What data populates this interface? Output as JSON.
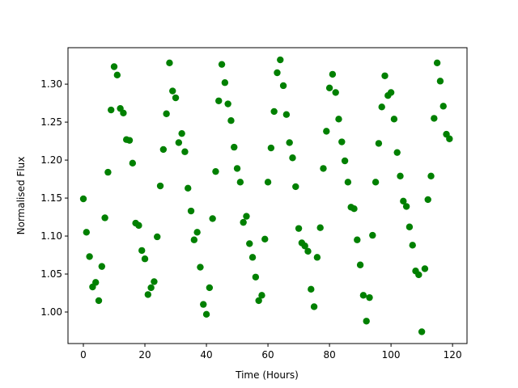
{
  "chart_data": {
    "type": "scatter",
    "xlabel": "Time (Hours)",
    "ylabel": "Normalised Flux",
    "color": "#008000",
    "x": [
      0,
      1,
      2,
      3,
      4,
      5,
      6,
      7,
      8,
      9,
      10,
      11,
      12,
      13,
      14,
      15,
      16,
      17,
      18,
      19,
      20,
      21,
      22,
      23,
      24,
      25,
      26,
      27,
      28,
      29,
      30,
      31,
      32,
      33,
      34,
      35,
      36,
      37,
      38,
      39,
      40,
      41,
      42,
      43,
      44,
      45,
      46,
      47,
      48,
      49,
      50,
      51,
      52,
      53,
      54,
      55,
      56,
      57,
      58,
      59,
      60,
      61,
      62,
      63,
      64,
      65,
      66,
      67,
      68,
      69,
      70,
      71,
      72,
      73,
      74,
      75,
      76,
      77,
      78,
      79,
      80,
      81,
      82,
      83,
      84,
      85,
      86,
      87,
      88,
      89,
      90,
      91,
      92,
      93,
      94,
      95,
      96,
      97,
      98,
      99,
      100,
      101,
      102,
      103,
      104,
      105,
      106,
      107,
      108,
      109,
      110,
      111,
      112,
      113,
      114,
      115,
      116,
      117,
      118,
      119
    ],
    "values": [
      1.149,
      1.105,
      1.073,
      1.033,
      1.039,
      1.015,
      1.06,
      1.124,
      1.184,
      1.266,
      1.323,
      1.312,
      1.268,
      1.262,
      1.227,
      1.226,
      1.196,
      1.117,
      1.114,
      1.081,
      1.07,
      1.023,
      1.032,
      1.04,
      1.099,
      1.166,
      1.214,
      1.261,
      1.328,
      1.291,
      1.282,
      1.223,
      1.235,
      1.211,
      1.163,
      1.133,
      1.095,
      1.105,
      1.059,
      1.01,
      0.997,
      1.032,
      1.123,
      1.185,
      1.278,
      1.326,
      1.302,
      1.274,
      1.252,
      1.217,
      1.189,
      1.171,
      1.118,
      1.126,
      1.09,
      1.072,
      1.046,
      1.015,
      1.022,
      1.096,
      1.171,
      1.216,
      1.264,
      1.315,
      1.332,
      1.298,
      1.26,
      1.223,
      1.203,
      1.165,
      1.11,
      1.091,
      1.087,
      1.08,
      1.03,
      1.007,
      1.072,
      1.111,
      1.189,
      1.238,
      1.295,
      1.313,
      1.289,
      1.254,
      1.224,
      1.199,
      1.171,
      1.138,
      1.136,
      1.095,
      1.062,
      1.022,
      0.988,
      1.019,
      1.101,
      1.171,
      1.222,
      1.27,
      1.311,
      1.285,
      1.289,
      1.254,
      1.21,
      1.179,
      1.146,
      1.139,
      1.112,
      1.088,
      1.054,
      1.049,
      0.974,
      1.057,
      1.148,
      1.179,
      1.255,
      1.328,
      1.304,
      1.271,
      1.234,
      1.228
    ],
    "xlim": [
      -5,
      124.7
    ],
    "ylim": [
      0.9585,
      1.348
    ],
    "xticks": [
      0,
      20,
      40,
      60,
      80,
      100,
      120
    ],
    "yticks": [
      {
        "value": 1.0,
        "label": "1.00"
      },
      1.05,
      {
        "value": 1.1,
        "label": "1.10"
      },
      1.15,
      {
        "value": 1.2,
        "label": "1.20"
      },
      1.25,
      {
        "value": 1.3,
        "label": "1.30"
      }
    ]
  }
}
